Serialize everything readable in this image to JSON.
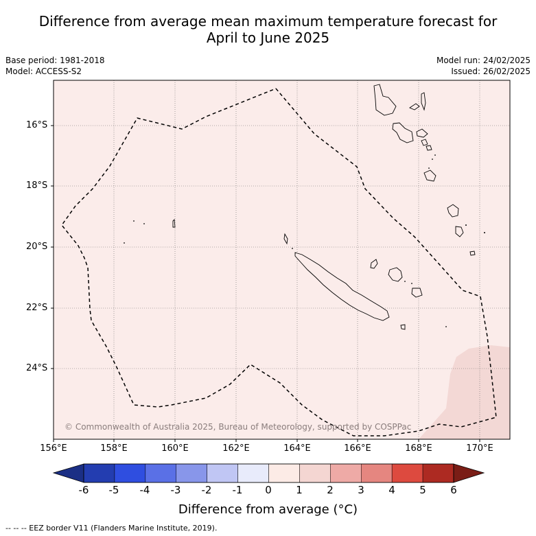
{
  "title": {
    "line1": "Difference from average mean maximum temperature forecast for",
    "line2": "April to June 2025"
  },
  "meta": {
    "base_period": "Base period: 1981-2018",
    "model": "Model: ACCESS-S2",
    "model_run": "Model run: 24/02/2025",
    "issued": "Issued: 26/02/2025"
  },
  "axes": {
    "lat_labels": [
      "16°S",
      "18°S",
      "20°S",
      "22°S",
      "24°S"
    ],
    "lon_labels": [
      "156°E",
      "158°E",
      "160°E",
      "162°E",
      "164°E",
      "166°E",
      "168°E",
      "170°E"
    ]
  },
  "copyright": "© Commonwealth of Australia 2025, Bureau of Meteorology, supported by COSPPac",
  "colorbar": {
    "ticks": [
      "-6",
      "-5",
      "-4",
      "-3",
      "-2",
      "-1",
      "0",
      "1",
      "2",
      "3",
      "4",
      "5",
      "6"
    ],
    "colors": [
      "#1b2f85",
      "#233db0",
      "#2f4ee0",
      "#5a70e6",
      "#8896ea",
      "#c0c6f4",
      "#e8ebfb",
      "#fcebe6",
      "#f4d6d2",
      "#eeaaa6",
      "#e58680",
      "#dd4a3f",
      "#ad2a22",
      "#7a1d16"
    ],
    "label": "Difference from average (°C)"
  },
  "footer": "-- -- -- EEZ border V11 (Flanders Marine Institute, 2019).",
  "map_colors": {
    "background": "#fbecea",
    "warm_patch": "#f3d8d5"
  }
}
